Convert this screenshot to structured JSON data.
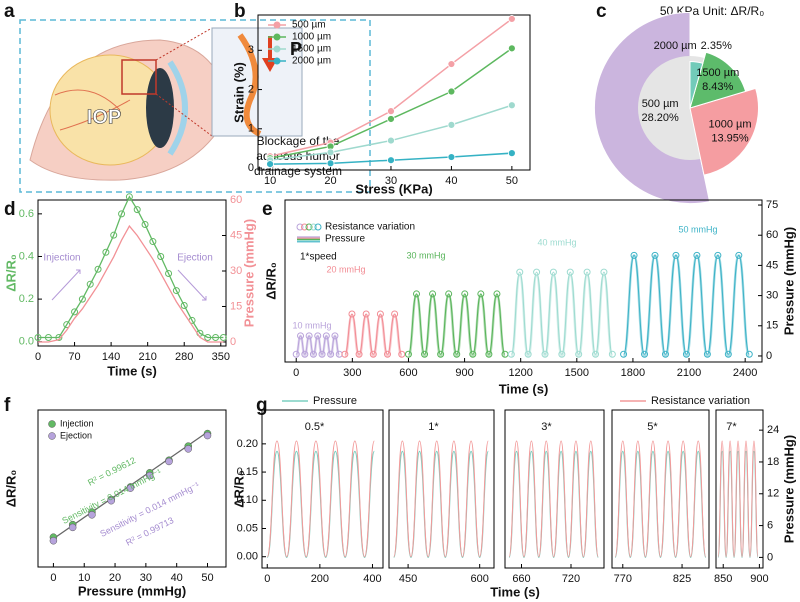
{
  "panel_labels": [
    "a",
    "b",
    "c",
    "d",
    "e",
    "f",
    "g"
  ],
  "illustration": {
    "iop": "IOP",
    "pressure": "P",
    "caption": [
      "Blockage of the",
      "aqueous humor",
      "drainage system"
    ]
  },
  "chart_data": [
    {
      "type": "line",
      "xlabel": "Stress (KPa)",
      "ylabel": "Strain (%)",
      "x": [
        10,
        20,
        30,
        40,
        50
      ],
      "xlim": [
        8,
        53
      ],
      "xticks": [
        10,
        20,
        30,
        40,
        50
      ],
      "ylim": [
        -0.05,
        3.9
      ],
      "yticks": [
        0,
        1,
        2,
        3
      ],
      "legend": "upper left",
      "series": [
        {
          "name": "500 µm",
          "color": "#f4a0a6",
          "values": [
            0.3,
            0.65,
            1.45,
            2.65,
            3.8
          ]
        },
        {
          "name": "1000 µm",
          "color": "#5db85f",
          "values": [
            0.25,
            0.55,
            1.25,
            1.95,
            3.05
          ]
        },
        {
          "name": "1500 µm",
          "color": "#9fd9ce",
          "values": [
            0.2,
            0.4,
            0.7,
            1.1,
            1.6
          ]
        },
        {
          "name": "2000 µm",
          "color": "#35b2c4",
          "values": [
            0.1,
            0.12,
            0.2,
            0.28,
            0.38
          ]
        }
      ]
    },
    {
      "type": "pie",
      "title": "50 KPa Unit: ΔR/R₀",
      "labels": [
        "500 µm",
        "1000 µm",
        "1500 µm",
        "2000 µm"
      ],
      "values": [
        28.2,
        13.95,
        8.43,
        2.35
      ],
      "value_labels": [
        "28.20%",
        "13.95%",
        "8.43%",
        "2.35%"
      ],
      "colors": [
        "#cbb5de",
        "#f59da1",
        "#5dbb6b",
        "#72cbb9"
      ],
      "center_color": "#e5e5e5"
    },
    {
      "type": "dual_line",
      "xlabel": "Time (s)",
      "ylabel": "ΔR/R₀",
      "y2label": "Pressure (mmHg)",
      "annotations": [
        "Injection",
        "Ejection"
      ],
      "x": [
        0,
        20,
        40,
        55,
        70,
        85,
        100,
        115,
        130,
        145,
        160,
        175,
        190,
        205,
        220,
        235,
        250,
        265,
        280,
        295,
        310,
        325,
        340,
        355
      ],
      "xlim": [
        0,
        360
      ],
      "xticks": [
        0,
        70,
        140,
        210,
        280,
        350
      ],
      "ylim": [
        -0.02,
        0.665
      ],
      "yticks": [
        {
          "value": 0,
          "label": "0.0"
        },
        0.2,
        0.4,
        0.6
      ],
      "y2lim": [
        -1.7,
        60
      ],
      "y2ticks": [
        0,
        15,
        30,
        45,
        60
      ],
      "series": [
        {
          "color": "#62b964",
          "marker": "circle",
          "values": [
            0.02,
            0.02,
            0.02,
            0.08,
            0.14,
            0.2,
            0.27,
            0.34,
            0.42,
            0.5,
            0.6,
            0.68,
            0.62,
            0.55,
            0.47,
            0.4,
            0.32,
            0.24,
            0.17,
            0.1,
            0.04,
            0.02,
            0.02,
            0.02
          ]
        },
        {
          "color": "#f29196",
          "axis": "y2",
          "values": [
            0,
            0,
            1,
            5,
            10,
            14,
            19,
            24,
            30,
            36,
            43,
            49,
            45,
            40,
            35,
            29,
            23,
            17,
            12,
            7,
            2,
            0,
            0,
            0
          ]
        }
      ]
    },
    {
      "type": "segmented_line",
      "xlabel": "Time (s)",
      "ylabel": "ΔR/R₀",
      "y2label": "Pressure (mmHg)",
      "legend": [
        "Resistance variation",
        "Pressure"
      ],
      "annotation": "1*speed",
      "xlim": [
        -60,
        2490
      ],
      "xticks": [
        0,
        300,
        600,
        900,
        1200,
        1500,
        1800,
        2100,
        2400
      ],
      "ylim": [
        -0.036,
        0.93
      ],
      "y2lim": [
        -3,
        77.5
      ],
      "y2ticks": [
        0,
        15,
        30,
        45,
        60,
        75
      ],
      "segments": [
        {
          "label": "10 mmHg",
          "color": "#b9a3da",
          "x": [
            0,
            23,
            46,
            69,
            92,
            115,
            138,
            161,
            184,
            207,
            230
          ],
          "pressure": [
            0,
            10,
            0,
            10,
            0,
            10,
            0,
            10,
            0,
            10,
            0
          ],
          "resistance": [
            0.01,
            0.12,
            0.01,
            0.12,
            0.01,
            0.12,
            0.01,
            0.12,
            0.01,
            0.12,
            0.01
          ]
        },
        {
          "label": "20 mmHg",
          "color": "#f28c94",
          "x": [
            260,
            298,
            336,
            374,
            412,
            450,
            488,
            526,
            564
          ],
          "pressure": [
            0,
            20,
            0,
            20,
            0,
            20,
            0,
            20,
            0
          ],
          "resistance": [
            0.01,
            0.25,
            0.01,
            0.25,
            0.01,
            0.25,
            0.01,
            0.25,
            0.01
          ]
        },
        {
          "label": "30 mmHg",
          "color": "#58b45a",
          "x": [
            600,
            643,
            686,
            729,
            772,
            815,
            858,
            901,
            944,
            987,
            1030,
            1073,
            1116
          ],
          "pressure": [
            0,
            30,
            0,
            30,
            0,
            30,
            0,
            30,
            0,
            30,
            0,
            30,
            0
          ],
          "resistance": [
            0.01,
            0.37,
            0.01,
            0.37,
            0.01,
            0.37,
            0.01,
            0.37,
            0.01,
            0.37,
            0.01,
            0.37,
            0.01
          ]
        },
        {
          "label": "40 mmHg",
          "color": "#9ddbd0",
          "x": [
            1150,
            1195,
            1240,
            1285,
            1330,
            1375,
            1420,
            1465,
            1510,
            1555,
            1600,
            1645,
            1690
          ],
          "pressure": [
            0,
            40,
            0,
            40,
            0,
            40,
            0,
            40,
            0,
            40,
            0,
            40,
            0
          ],
          "resistance": [
            0.01,
            0.5,
            0.01,
            0.5,
            0.01,
            0.5,
            0.01,
            0.5,
            0.01,
            0.5,
            0.01,
            0.5,
            0.01
          ]
        },
        {
          "label": "50 mmHg",
          "color": "#3db3c7",
          "x": [
            1750,
            1806,
            1862,
            1918,
            1974,
            2030,
            2086,
            2142,
            2198,
            2254,
            2310,
            2366,
            2422
          ],
          "pressure": [
            0,
            50,
            0,
            50,
            0,
            50,
            0,
            50,
            0,
            50,
            0,
            50,
            0
          ],
          "resistance": [
            0.01,
            0.6,
            0.01,
            0.6,
            0.01,
            0.6,
            0.01,
            0.6,
            0.01,
            0.6,
            0.01,
            0.6,
            0.01
          ]
        }
      ]
    },
    {
      "type": "scatter",
      "xlabel": "Pressure (mmHg)",
      "ylabel": "ΔR/R₀",
      "xlim": [
        -5,
        56
      ],
      "xticks": [
        0,
        10,
        20,
        30,
        40,
        50
      ],
      "ylim": [
        -0.17,
        0.83
      ],
      "annotations": [
        "R² = 0.99612",
        "Sensitivity = 0.014 mmHg⁻¹",
        "Sensitivity = 0.014 mmHg⁻¹",
        "R² = 0.99713"
      ],
      "x": [
        0,
        6.25,
        12.5,
        18.75,
        25,
        31.25,
        37.5,
        43.75,
        50
      ],
      "series": [
        {
          "name": "Injection",
          "color": "#62b964",
          "values": [
            0.02,
            0.1,
            0.18,
            0.26,
            0.34,
            0.43,
            0.51,
            0.6,
            0.68
          ]
        },
        {
          "name": "Ejection",
          "color": "#b6a3dc",
          "values": [
            0.01,
            0.095,
            0.175,
            0.265,
            0.345,
            0.425,
            0.515,
            0.595,
            0.68
          ]
        }
      ],
      "fit": {
        "color": "#666666",
        "x": [
          0,
          50
        ],
        "values": [
          0.01,
          0.69
        ]
      }
    },
    {
      "type": "multi_panel_line",
      "xlabel": "Time (s)",
      "ylabel": "ΔR/R₀",
      "y2label": "Pressure (mmHg)",
      "ylim": [
        -0.02,
        0.26
      ],
      "yticks": [
        {
          "value": 0,
          "label": "0.00"
        },
        0.05,
        {
          "value": 0.1,
          "label": "0.10"
        },
        0.15,
        {
          "value": 0.2,
          "label": "0.20"
        }
      ],
      "y2lim": [
        -2,
        27.8
      ],
      "y2ticks": [
        0,
        6,
        12,
        18,
        24
      ],
      "series": [
        {
          "name": "Pressure",
          "color": "#7ccfc0"
        },
        {
          "name": "Resistance variation",
          "color": "#f29a9a"
        }
      ],
      "panels": [
        {
          "title": "0.5*",
          "xlim": [
            -20,
            440
          ],
          "xticks": [
            0,
            200,
            400
          ],
          "x": [
            0,
            37,
            74,
            111,
            148,
            185,
            222,
            259,
            296,
            333,
            370,
            407
          ],
          "pressure": [
            0,
            20,
            0,
            20,
            0,
            20,
            0,
            20,
            0,
            20,
            0,
            20
          ],
          "resistance": [
            0,
            0.205,
            0,
            0.205,
            0,
            0.205,
            0,
            0.205,
            0,
            0.205,
            0,
            0.205
          ]
        },
        {
          "title": "1*",
          "xlim": [
            410,
            630
          ],
          "xticks": [
            450,
            600
          ],
          "x": [
            420,
            438,
            456,
            474,
            492,
            510,
            528,
            546,
            564,
            582,
            600,
            618
          ],
          "pressure": [
            0,
            20,
            0,
            20,
            0,
            20,
            0,
            20,
            0,
            20,
            0,
            20
          ],
          "resistance": [
            0,
            0.205,
            0,
            0.205,
            0,
            0.205,
            0,
            0.205,
            0,
            0.205,
            0,
            0.205
          ]
        },
        {
          "title": "3*",
          "xlim": [
            640,
            760
          ],
          "xticks": [
            660,
            720
          ],
          "x": [
            645,
            654,
            663,
            672,
            681,
            690,
            699,
            708,
            717,
            726,
            735,
            744,
            753
          ],
          "pressure": [
            0,
            20,
            0,
            20,
            0,
            20,
            0,
            20,
            0,
            20,
            0,
            20,
            0
          ],
          "resistance": [
            0,
            0.205,
            0,
            0.205,
            0,
            0.205,
            0,
            0.205,
            0,
            0.205,
            0,
            0.205,
            0
          ]
        },
        {
          "title": "5*",
          "xlim": [
            760,
            850
          ],
          "xticks": [
            770,
            825
          ],
          "x": [
            763,
            770,
            777,
            784,
            791,
            798,
            805,
            812,
            819,
            826,
            833,
            840,
            847
          ],
          "pressure": [
            0,
            20,
            0,
            20,
            0,
            20,
            0,
            20,
            0,
            20,
            0,
            20,
            0
          ],
          "resistance": [
            0,
            0.205,
            0,
            0.205,
            0,
            0.205,
            0,
            0.205,
            0,
            0.205,
            0,
            0.205,
            0
          ]
        },
        {
          "title": "7*",
          "xlim": [
            840,
            905
          ],
          "xticks": [
            850,
            900
          ],
          "x": [
            843,
            848.5,
            854,
            859.5,
            865,
            870.5,
            876,
            881.5,
            887,
            892.5,
            898
          ],
          "pressure": [
            0,
            20,
            0,
            20,
            0,
            20,
            0,
            20,
            0,
            20,
            0
          ],
          "resistance": [
            0,
            0.205,
            0,
            0.205,
            0,
            0.205,
            0,
            0.205,
            0,
            0.205,
            0
          ]
        }
      ]
    }
  ]
}
